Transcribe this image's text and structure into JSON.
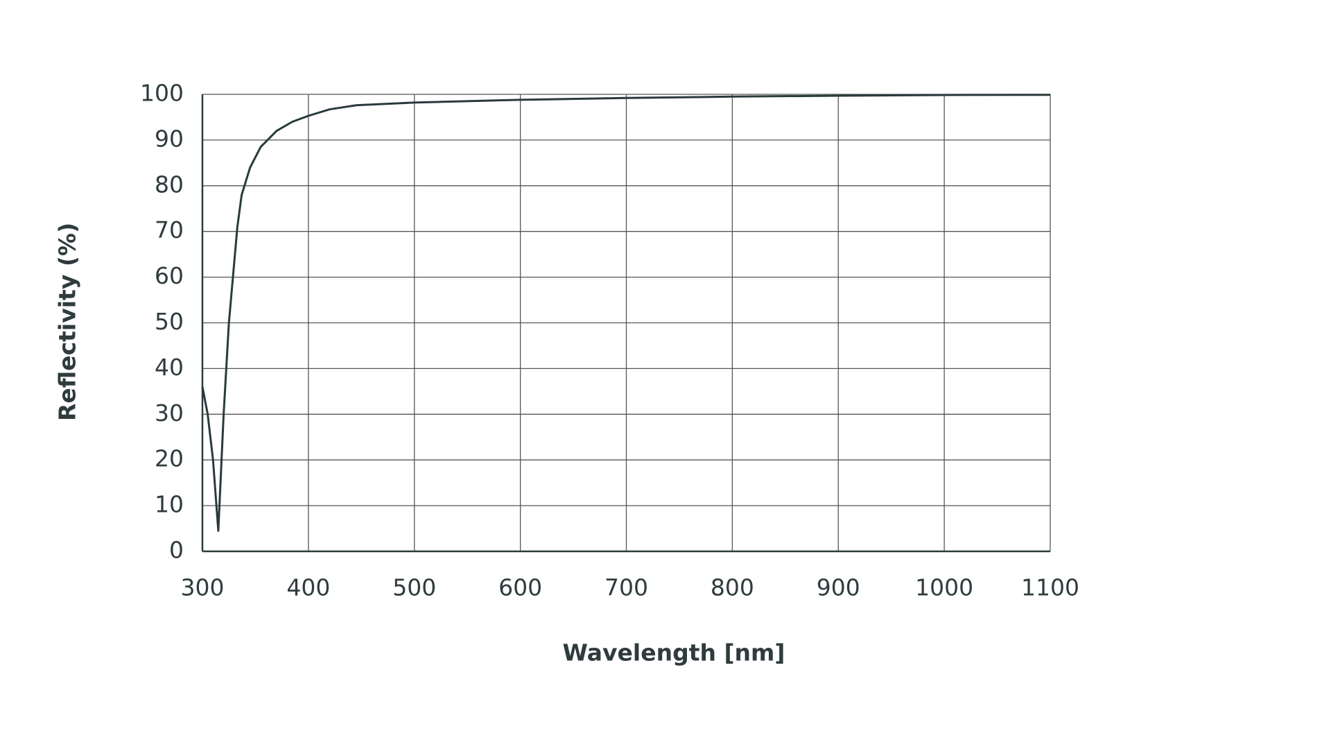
{
  "chart_data": {
    "type": "line",
    "xlabel": "Wavelength [nm]",
    "ylabel": "Reflectivity (%)",
    "x": [
      300,
      305,
      310,
      315,
      320,
      325,
      333,
      337,
      345,
      355,
      370,
      385,
      400,
      420,
      445,
      500,
      600,
      700,
      800,
      900,
      1000,
      1100
    ],
    "values": [
      36,
      30,
      20,
      4.5,
      30,
      50,
      71,
      78,
      84,
      88.5,
      92,
      94,
      95.3,
      96.7,
      97.6,
      98.2,
      98.8,
      99.2,
      99.5,
      99.7,
      99.85,
      99.9
    ],
    "color": "#2a3a3c",
    "xlim": [
      300,
      1100
    ],
    "xticks": [
      300,
      400,
      500,
      600,
      700,
      800,
      900,
      1000,
      1100
    ],
    "ylim": [
      0,
      100
    ],
    "yticks": [
      0,
      10,
      20,
      30,
      40,
      50,
      60,
      70,
      80,
      90,
      100
    ],
    "grid": true
  }
}
